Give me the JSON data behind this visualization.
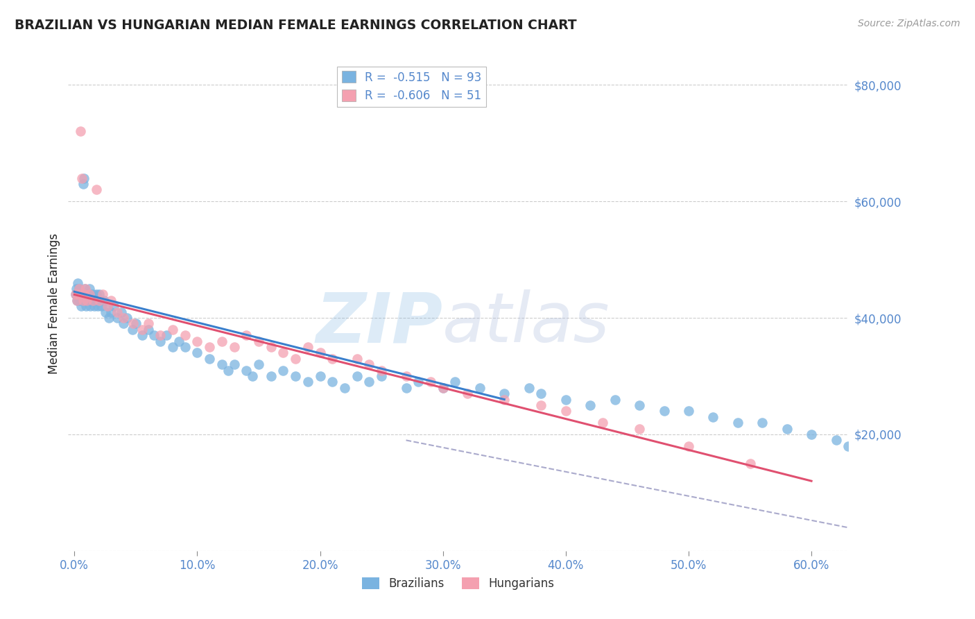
{
  "title": "BRAZILIAN VS HUNGARIAN MEDIAN FEMALE EARNINGS CORRELATION CHART",
  "source": "Source: ZipAtlas.com",
  "xlabel_vals": [
    0.0,
    10.0,
    20.0,
    30.0,
    40.0,
    50.0,
    60.0
  ],
  "ylabel_vals": [
    0,
    20000,
    40000,
    60000,
    80000
  ],
  "ylabel_labels": [
    "",
    "$20,000",
    "$40,000",
    "$60,000",
    "$80,000"
  ],
  "ylim": [
    0,
    85000
  ],
  "xlim": [
    -0.5,
    63
  ],
  "brazil_R": -0.515,
  "brazil_N": 93,
  "hungary_R": -0.606,
  "hungary_N": 51,
  "brazil_color": "#7ab3e0",
  "hungary_color": "#f4a0b0",
  "brazil_line_color": "#3a7fcc",
  "hungary_line_color": "#e05070",
  "dashed_line_color": "#aaaacc",
  "title_color": "#222222",
  "axis_label_color": "#222222",
  "tick_color": "#5588cc",
  "watermark_zip_color": "#7ab3e0",
  "watermark_atlas_color": "#aabbdd",
  "brazil_scatter_x": [
    0.1,
    0.15,
    0.2,
    0.25,
    0.3,
    0.35,
    0.4,
    0.45,
    0.5,
    0.55,
    0.6,
    0.65,
    0.7,
    0.75,
    0.8,
    0.85,
    0.9,
    0.95,
    1.0,
    1.0,
    1.1,
    1.2,
    1.2,
    1.3,
    1.3,
    1.4,
    1.5,
    1.6,
    1.7,
    1.8,
    1.9,
    2.0,
    2.0,
    2.2,
    2.4,
    2.5,
    2.7,
    2.8,
    3.0,
    3.2,
    3.5,
    3.8,
    4.0,
    4.3,
    4.7,
    5.0,
    5.5,
    6.0,
    6.5,
    7.0,
    7.5,
    8.0,
    8.5,
    9.0,
    10.0,
    11.0,
    12.0,
    12.5,
    13.0,
    14.0,
    14.5,
    15.0,
    16.0,
    17.0,
    18.0,
    19.0,
    20.0,
    21.0,
    22.0,
    23.0,
    24.0,
    25.0,
    27.0,
    28.0,
    30.0,
    31.0,
    33.0,
    35.0,
    37.0,
    38.0,
    40.0,
    42.0,
    44.0,
    46.0,
    48.0,
    50.0,
    52.0,
    54.0,
    56.0,
    58.0,
    60.0,
    62.0,
    63.0
  ],
  "brazil_scatter_y": [
    44000,
    45000,
    43000,
    46000,
    44000,
    43000,
    45000,
    44000,
    43000,
    42000,
    44000,
    43000,
    63000,
    64000,
    44000,
    45000,
    43000,
    42000,
    44000,
    43000,
    44000,
    43000,
    45000,
    44000,
    42000,
    43000,
    44000,
    42000,
    43000,
    44000,
    42000,
    43000,
    44000,
    42000,
    43000,
    41000,
    42000,
    40000,
    41000,
    42000,
    40000,
    41000,
    39000,
    40000,
    38000,
    39000,
    37000,
    38000,
    37000,
    36000,
    37000,
    35000,
    36000,
    35000,
    34000,
    33000,
    32000,
    31000,
    32000,
    31000,
    30000,
    32000,
    30000,
    31000,
    30000,
    29000,
    30000,
    29000,
    28000,
    30000,
    29000,
    30000,
    28000,
    29000,
    28000,
    29000,
    28000,
    27000,
    28000,
    27000,
    26000,
    25000,
    26000,
    25000,
    24000,
    24000,
    23000,
    22000,
    22000,
    21000,
    20000,
    19000,
    18000
  ],
  "hungary_scatter_x": [
    0.1,
    0.2,
    0.3,
    0.4,
    0.5,
    0.6,
    0.7,
    0.8,
    0.9,
    1.0,
    1.2,
    1.5,
    1.8,
    2.0,
    2.3,
    2.7,
    3.0,
    3.5,
    4.0,
    4.8,
    5.5,
    6.0,
    7.0,
    8.0,
    9.0,
    10.0,
    11.0,
    12.0,
    13.0,
    14.0,
    15.0,
    16.0,
    17.0,
    18.0,
    19.0,
    20.0,
    21.0,
    23.0,
    24.0,
    25.0,
    27.0,
    29.0,
    30.0,
    32.0,
    35.0,
    38.0,
    40.0,
    43.0,
    46.0,
    50.0,
    55.0
  ],
  "hungary_scatter_y": [
    44000,
    43000,
    44000,
    45000,
    72000,
    64000,
    43000,
    44000,
    45000,
    43000,
    44000,
    43000,
    62000,
    43000,
    44000,
    42000,
    43000,
    41000,
    40000,
    39000,
    38000,
    39000,
    37000,
    38000,
    37000,
    36000,
    35000,
    36000,
    35000,
    37000,
    36000,
    35000,
    34000,
    33000,
    35000,
    34000,
    33000,
    33000,
    32000,
    31000,
    30000,
    29000,
    28000,
    27000,
    26000,
    25000,
    24000,
    22000,
    21000,
    18000,
    15000
  ],
  "brazil_line_x0": 0,
  "brazil_line_x1": 35,
  "brazil_line_y0": 44500,
  "brazil_line_y1": 26000,
  "hungary_line_x0": 0,
  "hungary_line_x1": 60,
  "hungary_line_y0": 44000,
  "hungary_line_y1": 12000,
  "dashed_line_x0": 27,
  "dashed_line_x1": 63,
  "dashed_line_y0": 19000,
  "dashed_line_y1": 4000,
  "background_color": "#ffffff",
  "grid_color": "#cccccc",
  "legend_edge_color": "#bbbbbb"
}
